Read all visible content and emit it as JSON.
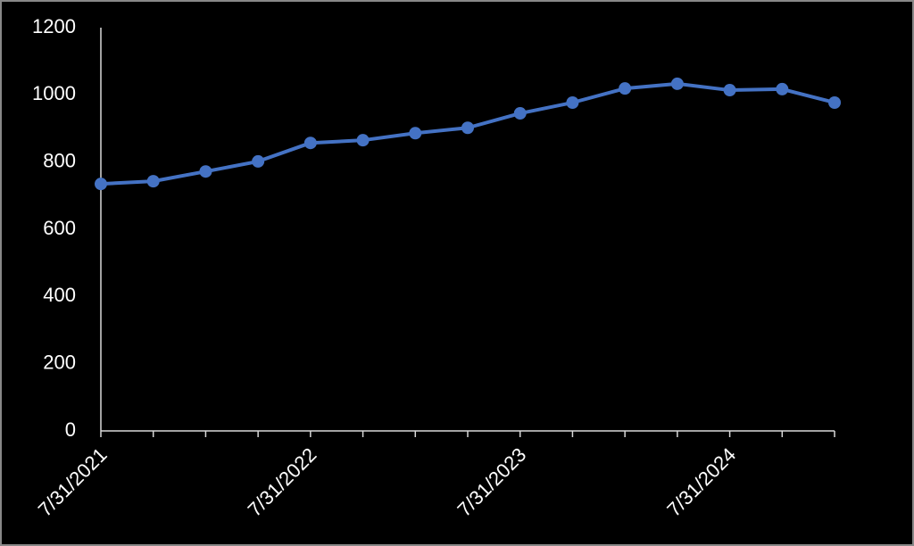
{
  "chart_data": {
    "type": "line",
    "categories": [
      "7/31/2021",
      null,
      null,
      null,
      "7/31/2022",
      null,
      null,
      null,
      "7/31/2023",
      null,
      null,
      null,
      "7/31/2024",
      null,
      null
    ],
    "values": [
      735,
      743,
      772,
      802,
      857,
      865,
      886,
      902,
      945,
      977,
      1019,
      1033,
      1014,
      1017,
      977
    ],
    "color": "#4472c4",
    "ylim": [
      0,
      1200
    ],
    "yticks": [
      0,
      200,
      400,
      600,
      800,
      1000,
      1200
    ],
    "grid": false
  }
}
